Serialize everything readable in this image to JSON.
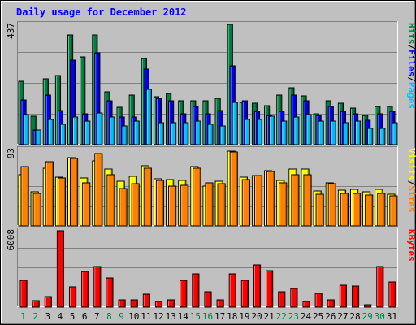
{
  "chart_data": {
    "type": "bar",
    "title": "Daily usage for December 2012",
    "categories": [
      "1",
      "2",
      "3",
      "4",
      "5",
      "6",
      "7",
      "8",
      "9",
      "10",
      "11",
      "12",
      "13",
      "14",
      "15",
      "16",
      "17",
      "18",
      "19",
      "20",
      "21",
      "22",
      "23",
      "24",
      "25",
      "26",
      "27",
      "28",
      "29",
      "30",
      "31"
    ],
    "weekend_days": [
      "1",
      "2",
      "8",
      "9",
      "15",
      "16",
      "22",
      "23",
      "29",
      "30"
    ],
    "panels": [
      {
        "id": "top",
        "ymax_label": "437",
        "ymax": 437,
        "right_label_parts": [
          "Pages",
          "Files",
          "Hits"
        ],
        "series": [
          {
            "name": "Hits",
            "color": "#008040",
            "values": [
              229,
              104,
              238,
              250,
              400,
              320,
              400,
              193,
              137,
              180,
              312,
              173,
              186,
              160,
              160,
              160,
              168,
              437,
              153,
              150,
              143,
              180,
              208,
              177,
              113,
              160,
              150,
              133,
              105,
              140,
              140
            ]
          },
          {
            "name": "Files",
            "color": "#0000ff",
            "values": [
              162,
              53,
              180,
              124,
              306,
              113,
              333,
              160,
              100,
              100,
              275,
              167,
              160,
              113,
              140,
              113,
              125,
              285,
              160,
              120,
              107,
              120,
              180,
              160,
              105,
              140,
              120,
              113,
              88,
              113,
              120
            ]
          },
          {
            "name": "Pages",
            "color": "#00bfff",
            "values": [
              108,
              53,
              93,
              74,
              100,
              86,
              115,
              100,
              67,
              86,
              200,
              80,
              80,
              80,
              87,
              73,
              67,
              153,
              93,
              93,
              103,
              85,
              100,
              108,
              85,
              86,
              80,
              86,
              60,
              60,
              80
            ]
          }
        ]
      },
      {
        "id": "middle",
        "ymax_label": "93",
        "ymax": 93,
        "right_label_parts": [
          "Sites",
          "Visits"
        ],
        "series": [
          {
            "name": "Visits",
            "color": "#ffff00",
            "values": [
              62,
              42,
              70,
              59,
              83,
              58,
              79,
              69,
              54,
              60,
              73,
              57,
              56,
              55,
              72,
              48,
              54,
              91,
              59,
              61,
              67,
              55,
              69,
              69,
              43,
              52,
              44,
              45,
              42,
              45,
              39
            ]
          },
          {
            "name": "Sites",
            "color": "#ff8000",
            "values": [
              72,
              40,
              78,
              58,
              82,
              52,
              88,
              62,
              46,
              51,
              70,
              55,
              48,
              49,
              70,
              52,
              51,
              90,
              56,
              61,
              66,
              52,
              62,
              62,
              39,
              51,
              40,
              40,
              38,
              40,
              37
            ]
          }
        ]
      },
      {
        "id": "bottom",
        "ymax_label": "6008",
        "ymax": 6008,
        "right_label_parts": [
          "KBytes"
        ],
        "series": [
          {
            "name": "KBytes",
            "color": "#ff0000",
            "values": [
              2100,
              500,
              800,
              6008,
              1600,
              2800,
              3200,
              2300,
              560,
              560,
              1050,
              450,
              560,
              2100,
              2600,
              1200,
              580,
              2600,
              2100,
              3300,
              2900,
              1200,
              1450,
              450,
              1100,
              560,
              1700,
              1650,
              200,
              3200,
              1950
            ]
          }
        ]
      }
    ]
  }
}
